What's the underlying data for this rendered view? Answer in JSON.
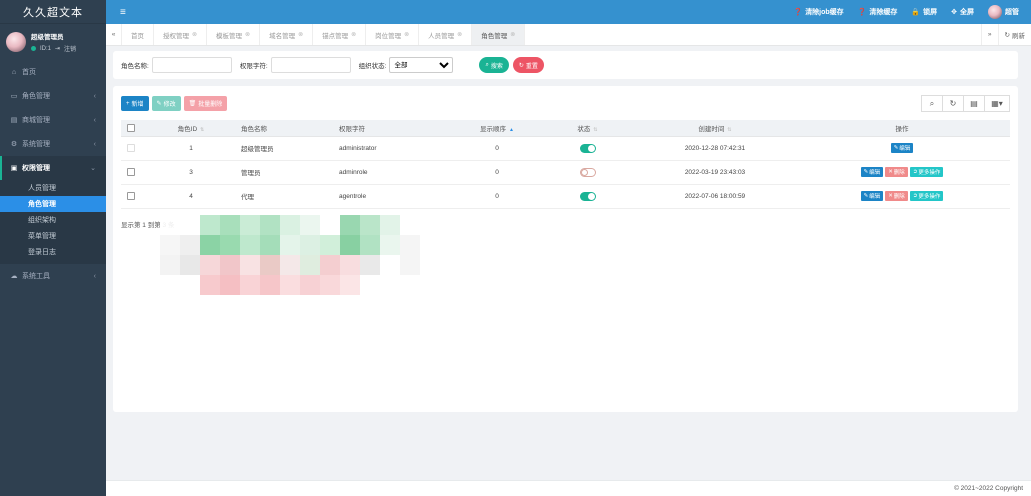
{
  "app": {
    "title": "久久超文本"
  },
  "user": {
    "name": "超级管理员",
    "id_label": "ID:1",
    "logout_label": "注销",
    "short_name": "超管"
  },
  "sidebar": {
    "items": [
      {
        "icon": "home-icon",
        "label": "首页"
      },
      {
        "icon": "id-card-icon",
        "label": "角色管理"
      },
      {
        "icon": "bank-icon",
        "label": "商城管理"
      },
      {
        "icon": "gear-icon",
        "label": "系统管理"
      },
      {
        "icon": "user-shield-icon",
        "label": "权限管理",
        "children": [
          "人员管理",
          "角色管理",
          "组织架构",
          "菜单管理",
          "登录日志"
        ]
      },
      {
        "icon": "cloud-icon",
        "label": "系统工具"
      }
    ]
  },
  "topbar": {
    "actions": [
      {
        "icon": "question-circle-icon",
        "label": "清除job缓存"
      },
      {
        "icon": "question-circle-icon",
        "label": "清除缓存"
      },
      {
        "icon": "lock-icon",
        "label": "锁屏"
      },
      {
        "icon": "expand-icon",
        "label": "全屏"
      }
    ]
  },
  "tabs": {
    "items": [
      "首页",
      "授权管理",
      "模板管理",
      "域名管理",
      "锚点管理",
      "岗位管理",
      "人员管理",
      "角色管理"
    ],
    "active_index": 7,
    "refresh_label": "刷新"
  },
  "search": {
    "role_name_label": "角色名称:",
    "role_name_value": "",
    "perm_label": "权限字符:",
    "perm_value": "",
    "status_label": "组织状态:",
    "status_selected": "全部",
    "search_label": "搜索",
    "reset_label": "重置"
  },
  "toolbar": {
    "add_label": "新增",
    "edit_label": "修改",
    "delete_label": "批量删除"
  },
  "table": {
    "headers": [
      "角色ID",
      "角色名称",
      "权限字符",
      "显示顺序",
      "状态",
      "创建时间",
      "操作"
    ],
    "rows": [
      {
        "id": "1",
        "name": "超级管理员",
        "key": "administrator",
        "sort": "0",
        "status": true,
        "created": "2020-12-28 07:42:31"
      },
      {
        "id": "3",
        "name": "管理员",
        "key": "adminrole",
        "sort": "0",
        "status": false,
        "created": "2022-03-19 23:43:03"
      },
      {
        "id": "4",
        "name": "代理",
        "key": "agentrole",
        "sort": "0",
        "status": true,
        "created": "2022-07-06 18:00:59"
      }
    ],
    "op_edit": "编辑",
    "op_delete": "删除",
    "op_more": "更多操作"
  },
  "pager": {
    "info": "显示第 1 到第 3 条"
  },
  "footer": {
    "copyright": "© 2021~2022 Copyright"
  },
  "colors": {
    "sidebar": "#2f4050",
    "topbar": "#3591cf",
    "accent": "#1ab394",
    "primary": "#1c84c6",
    "danger": "#ed5565"
  }
}
